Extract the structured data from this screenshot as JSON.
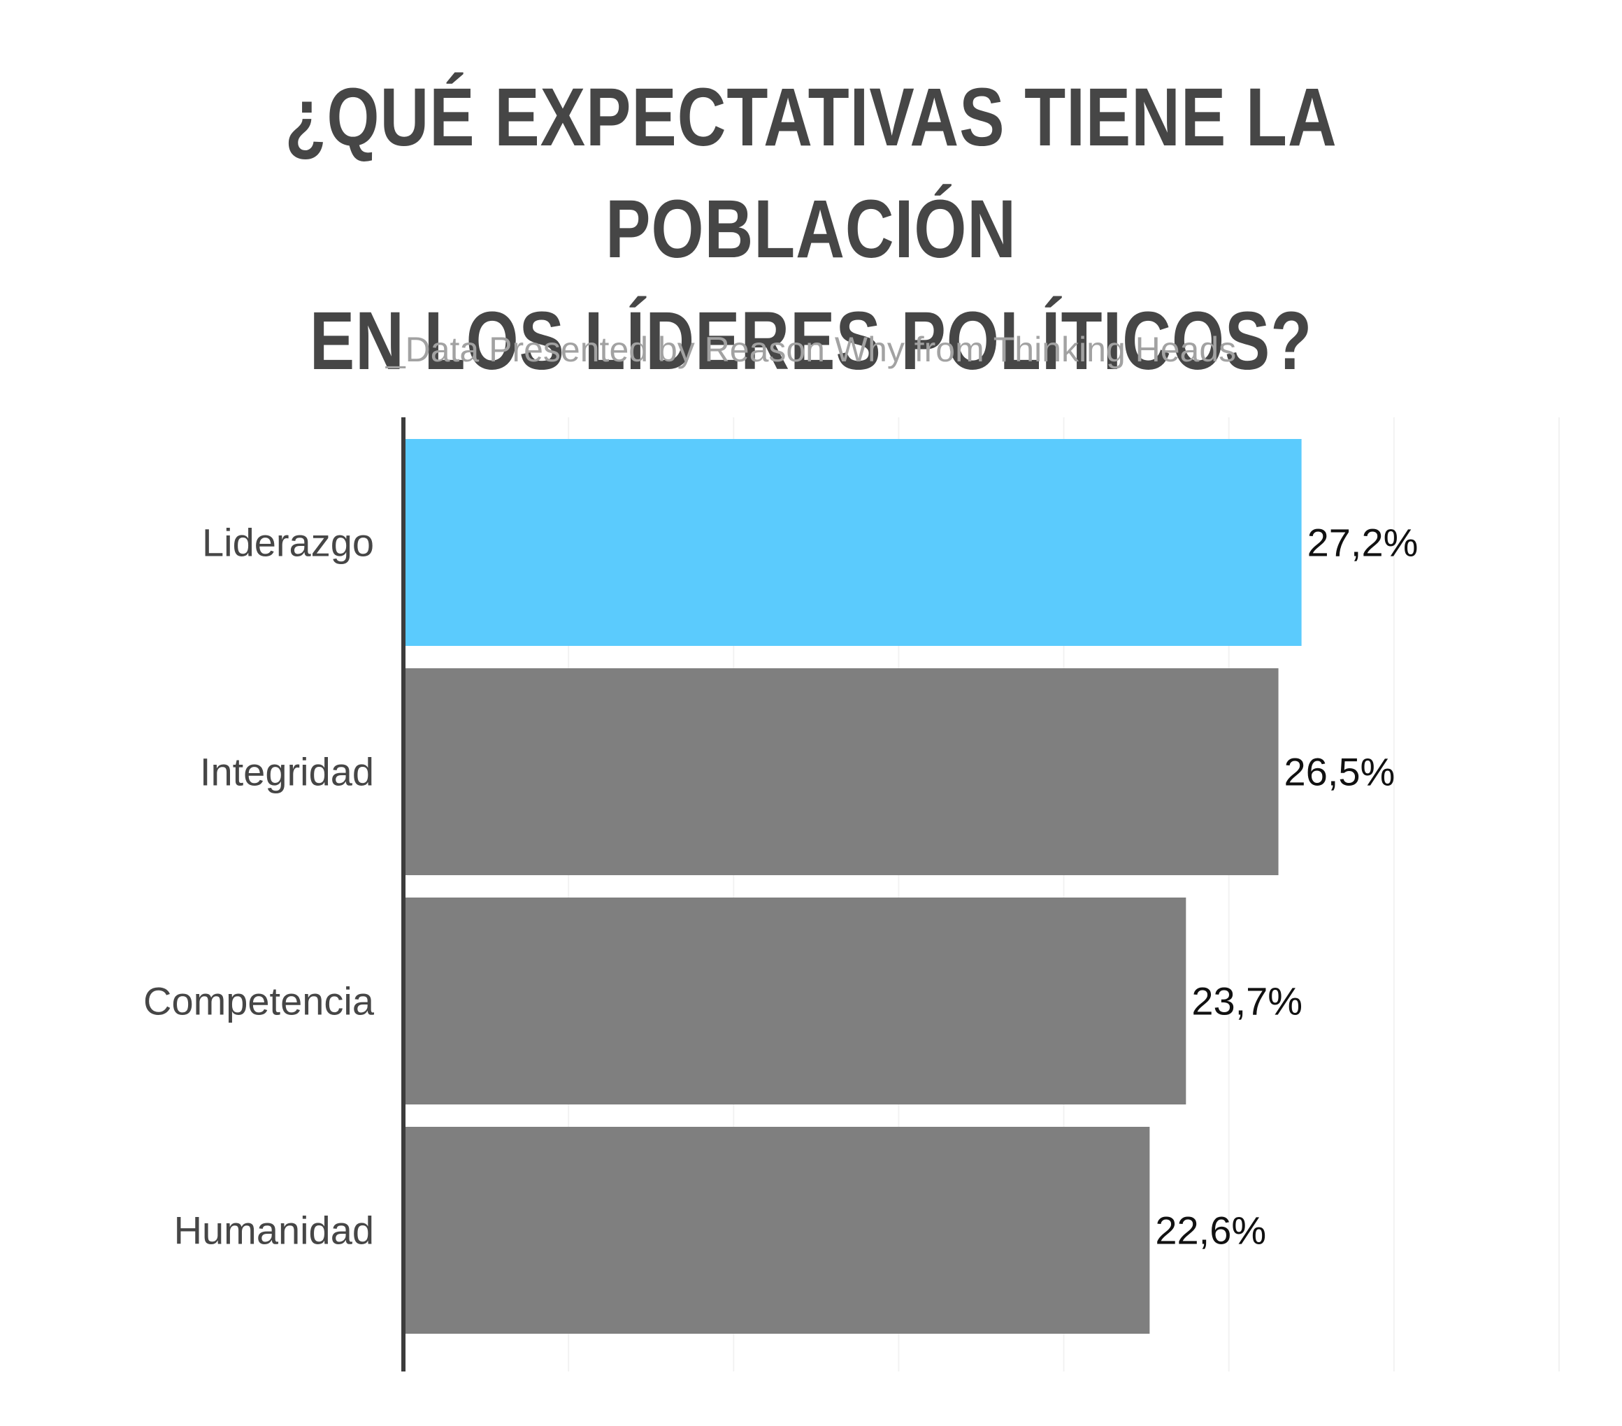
{
  "title_lines": [
    "¿QUÉ EXPECTATIVAS TIENE LA POBLACIÓN",
    "EN LOS LÍDERES POLÍTICOS?"
  ],
  "subtitle": "_Data Presented by Reason Why from Thinking Heads",
  "colors": {
    "highlight": "#5bcbfd",
    "bar": "#7f7f7f",
    "axis": "#3c3c3c",
    "grid": "#f2f2f2",
    "category_label": "#464646",
    "value_label": "#111111"
  },
  "chart_data": {
    "type": "bar",
    "orientation": "horizontal",
    "categories": [
      "Liderazgo",
      "Integridad",
      "Competencia",
      "Humanidad"
    ],
    "values": [
      27.2,
      26.5,
      23.7,
      22.6
    ],
    "value_labels": [
      "27,2%",
      "26,5%",
      "23,7%",
      "22,6%"
    ],
    "highlight_index": 0,
    "xlim": [
      0,
      35
    ],
    "grid": true,
    "xlabel": "",
    "ylabel": ""
  }
}
